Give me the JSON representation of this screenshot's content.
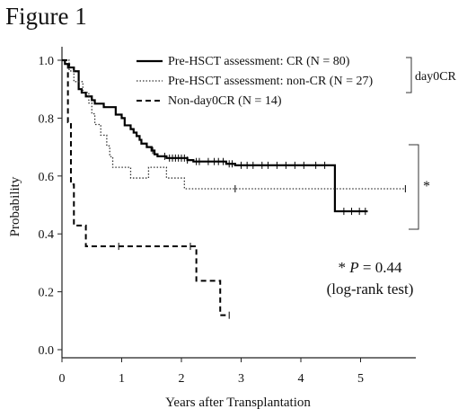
{
  "figure": {
    "title": "Figure 1"
  },
  "chart_data": {
    "type": "line",
    "subtype": "kaplan-meier",
    "xlabel": "Years after Transplantation",
    "ylabel": "Probability",
    "xlim": [
      0,
      5.85
    ],
    "ylim": [
      0,
      1.02
    ],
    "x_ticks": [
      0,
      1,
      2,
      3,
      4,
      5
    ],
    "y_ticks": [
      "0.0",
      "0.2",
      "0.4",
      "0.6",
      "0.8",
      "1.0"
    ],
    "grid": false,
    "legend_position": "top-right",
    "series": [
      {
        "name": "Pre-HSCT assessment: CR (N = 80)",
        "style": "solid",
        "points": [
          [
            0,
            1.0
          ],
          [
            0.05,
            0.987
          ],
          [
            0.12,
            0.975
          ],
          [
            0.2,
            0.962
          ],
          [
            0.28,
            0.9
          ],
          [
            0.33,
            0.888
          ],
          [
            0.4,
            0.875
          ],
          [
            0.5,
            0.862
          ],
          [
            0.55,
            0.85
          ],
          [
            0.7,
            0.838
          ],
          [
            0.9,
            0.812
          ],
          [
            1.0,
            0.8
          ],
          [
            1.05,
            0.775
          ],
          [
            1.15,
            0.762
          ],
          [
            1.2,
            0.75
          ],
          [
            1.25,
            0.738
          ],
          [
            1.3,
            0.725
          ],
          [
            1.33,
            0.712
          ],
          [
            1.42,
            0.7
          ],
          [
            1.5,
            0.688
          ],
          [
            1.55,
            0.675
          ],
          [
            1.6,
            0.668
          ],
          [
            1.75,
            0.662
          ],
          [
            2.1,
            0.655
          ],
          [
            2.2,
            0.65
          ],
          [
            2.75,
            0.642
          ],
          [
            2.9,
            0.637
          ],
          [
            4.55,
            0.637
          ],
          [
            4.57,
            0.478
          ],
          [
            5.12,
            0.478
          ]
        ],
        "censor_x": [
          1.52,
          1.72,
          1.8,
          1.85,
          1.9,
          1.95,
          2.0,
          2.05,
          2.1,
          2.25,
          2.3,
          2.45,
          2.55,
          2.62,
          2.7,
          2.8,
          2.85,
          3.0,
          3.1,
          3.2,
          3.35,
          3.45,
          3.6,
          3.75,
          3.9,
          4.05,
          4.25,
          4.4,
          4.72,
          4.85,
          4.98,
          5.08
        ]
      },
      {
        "name": "Pre-HSCT assessment: non-CR (N = 27)",
        "style": "dotted",
        "points": [
          [
            0,
            1.0
          ],
          [
            0.12,
            0.963
          ],
          [
            0.2,
            0.926
          ],
          [
            0.35,
            0.889
          ],
          [
            0.45,
            0.852
          ],
          [
            0.5,
            0.815
          ],
          [
            0.55,
            0.778
          ],
          [
            0.65,
            0.741
          ],
          [
            0.75,
            0.704
          ],
          [
            0.8,
            0.667
          ],
          [
            0.85,
            0.63
          ],
          [
            1.1,
            0.63
          ],
          [
            1.15,
            0.593
          ],
          [
            1.4,
            0.593
          ],
          [
            1.45,
            0.63
          ],
          [
            1.65,
            0.63
          ],
          [
            1.75,
            0.593
          ],
          [
            2.0,
            0.593
          ],
          [
            2.05,
            0.556
          ],
          [
            5.75,
            0.556
          ]
        ],
        "censor_x": [
          2.9,
          5.75
        ]
      },
      {
        "name": "Non-day0CR (N = 14)",
        "style": "dashed",
        "points": [
          [
            0,
            1.0
          ],
          [
            0.1,
            0.786
          ],
          [
            0.15,
            0.571
          ],
          [
            0.2,
            0.429
          ],
          [
            0.35,
            0.429
          ],
          [
            0.4,
            0.357
          ],
          [
            2.2,
            0.357
          ],
          [
            2.25,
            0.238
          ],
          [
            2.6,
            0.238
          ],
          [
            2.65,
            0.119
          ],
          [
            2.75,
            0.119
          ]
        ],
        "censor_x": [
          0.95,
          2.15,
          2.8
        ]
      }
    ],
    "legend_bracket_label": "day0CR",
    "significance_bracket_label": "*",
    "annotation": {
      "star": "*",
      "p_label": "P",
      "p_value": " = 0.44",
      "test": "(log-rank test)"
    }
  }
}
